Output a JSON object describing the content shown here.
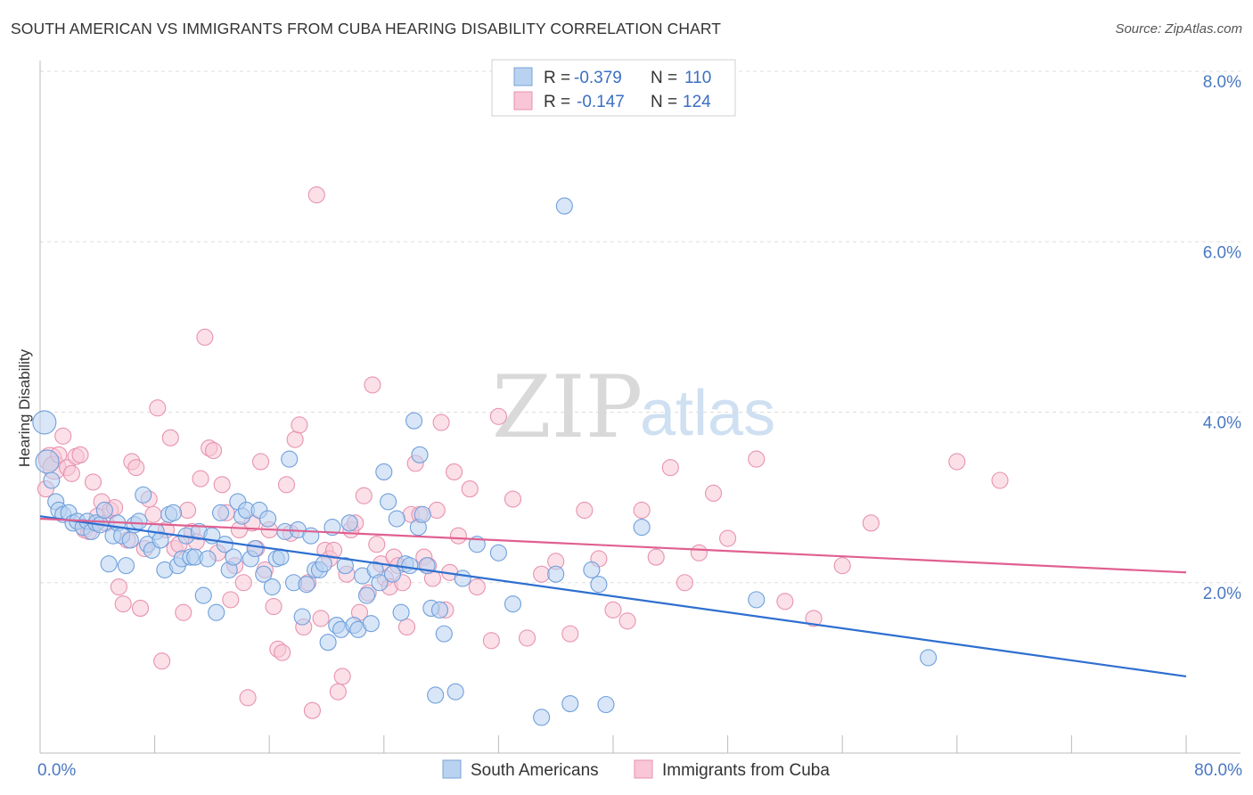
{
  "title": "SOUTH AMERICAN VS IMMIGRANTS FROM CUBA HEARING DISABILITY CORRELATION CHART",
  "source": "Source: ZipAtlas.com",
  "watermark": {
    "zip": "ZIP",
    "atlas": "atlas"
  },
  "legend": {
    "r_label": "R =",
    "n_label": "N =",
    "entries": [
      {
        "r": "-0.379",
        "n": "110",
        "fill": "#b8d2f0",
        "stroke": "#7aa3d8"
      },
      {
        "r": "-0.147",
        "n": "124",
        "fill": "#f8c6d6",
        "stroke": "#e892b0"
      }
    ]
  },
  "chart_data": {
    "type": "scatter",
    "title": "SOUTH AMERICAN VS IMMIGRANTS FROM CUBA HEARING DISABILITY CORRELATION CHART",
    "xlabel": "",
    "ylabel": "Hearing Disability",
    "xlim": [
      0,
      80
    ],
    "ylim": [
      0,
      8
    ],
    "x_tick_labels": [
      "0.0%",
      "80.0%"
    ],
    "y_ticks": [
      2,
      4,
      6,
      8
    ],
    "y_tick_labels": [
      "2.0%",
      "4.0%",
      "6.0%",
      "8.0%"
    ],
    "grid": "horizontal dashed",
    "legend_position": "top-center",
    "series": [
      {
        "name": "South Americans",
        "color": "#6f9fdc",
        "fill": "#b8d2f0",
        "line_color": "#2e6fd0",
        "r": -0.379,
        "n": 110,
        "trend": {
          "x": [
            0,
            80
          ],
          "y": [
            2.78,
            0.9
          ]
        },
        "points": [
          [
            0.3,
            3.88
          ],
          [
            0.5,
            3.42
          ],
          [
            0.8,
            3.2
          ],
          [
            1.1,
            2.95
          ],
          [
            1.3,
            2.85
          ],
          [
            1.6,
            2.8
          ],
          [
            2.0,
            2.82
          ],
          [
            2.3,
            2.7
          ],
          [
            2.6,
            2.72
          ],
          [
            3.0,
            2.65
          ],
          [
            3.3,
            2.72
          ],
          [
            3.6,
            2.6
          ],
          [
            3.9,
            2.7
          ],
          [
            4.2,
            2.68
          ],
          [
            4.5,
            2.85
          ],
          [
            4.8,
            2.22
          ],
          [
            5.1,
            2.55
          ],
          [
            5.4,
            2.7
          ],
          [
            5.7,
            2.55
          ],
          [
            6.0,
            2.2
          ],
          [
            6.3,
            2.5
          ],
          [
            6.6,
            2.68
          ],
          [
            6.9,
            2.72
          ],
          [
            7.2,
            3.03
          ],
          [
            7.5,
            2.45
          ],
          [
            7.8,
            2.38
          ],
          [
            8.1,
            2.6
          ],
          [
            8.4,
            2.5
          ],
          [
            8.7,
            2.15
          ],
          [
            9.0,
            2.8
          ],
          [
            9.3,
            2.82
          ],
          [
            9.6,
            2.2
          ],
          [
            9.9,
            2.28
          ],
          [
            10.2,
            2.55
          ],
          [
            10.5,
            2.3
          ],
          [
            10.8,
            2.3
          ],
          [
            11.1,
            2.6
          ],
          [
            11.4,
            1.85
          ],
          [
            11.7,
            2.28
          ],
          [
            12.0,
            2.55
          ],
          [
            12.3,
            1.65
          ],
          [
            12.6,
            2.82
          ],
          [
            12.9,
            2.45
          ],
          [
            13.2,
            2.15
          ],
          [
            13.5,
            2.3
          ],
          [
            13.8,
            2.95
          ],
          [
            14.1,
            2.78
          ],
          [
            14.4,
            2.85
          ],
          [
            14.7,
            2.28
          ],
          [
            15.0,
            2.4
          ],
          [
            15.3,
            2.85
          ],
          [
            15.6,
            2.1
          ],
          [
            15.9,
            2.75
          ],
          [
            16.2,
            1.95
          ],
          [
            16.5,
            2.28
          ],
          [
            16.8,
            2.3
          ],
          [
            17.1,
            2.6
          ],
          [
            17.4,
            3.45
          ],
          [
            17.7,
            2.0
          ],
          [
            18.0,
            2.62
          ],
          [
            18.3,
            1.6
          ],
          [
            18.6,
            1.98
          ],
          [
            18.9,
            2.55
          ],
          [
            19.2,
            2.15
          ],
          [
            19.5,
            2.15
          ],
          [
            19.8,
            2.22
          ],
          [
            20.1,
            1.3
          ],
          [
            20.4,
            2.65
          ],
          [
            20.7,
            1.5
          ],
          [
            21.0,
            1.45
          ],
          [
            21.3,
            2.2
          ],
          [
            21.6,
            2.7
          ],
          [
            21.9,
            1.5
          ],
          [
            22.2,
            1.45
          ],
          [
            22.5,
            2.08
          ],
          [
            22.8,
            1.85
          ],
          [
            23.1,
            1.52
          ],
          [
            23.4,
            2.15
          ],
          [
            23.7,
            2.0
          ],
          [
            24.0,
            3.3
          ],
          [
            24.3,
            2.95
          ],
          [
            24.6,
            2.1
          ],
          [
            24.9,
            2.75
          ],
          [
            25.2,
            1.65
          ],
          [
            25.5,
            2.22
          ],
          [
            25.8,
            2.2
          ],
          [
            26.1,
            3.9
          ],
          [
            26.4,
            2.65
          ],
          [
            26.7,
            2.8
          ],
          [
            27.0,
            2.2
          ],
          [
            27.3,
            1.7
          ],
          [
            27.6,
            0.68
          ],
          [
            27.9,
            1.68
          ],
          [
            28.2,
            1.4
          ],
          [
            29.0,
            0.72
          ],
          [
            29.5,
            2.05
          ],
          [
            30.5,
            2.45
          ],
          [
            32.0,
            2.35
          ],
          [
            33.0,
            1.75
          ],
          [
            35.0,
            0.42
          ],
          [
            36.0,
            2.1
          ],
          [
            36.6,
            6.42
          ],
          [
            37.0,
            0.58
          ],
          [
            39.0,
            1.98
          ],
          [
            39.5,
            0.57
          ],
          [
            42.0,
            2.65
          ],
          [
            38.5,
            2.15
          ],
          [
            50.0,
            1.8
          ],
          [
            62.0,
            1.12
          ],
          [
            26.5,
            3.5
          ]
        ]
      },
      {
        "name": "Immigrants from Cuba",
        "color": "#e892b0",
        "fill": "#f8c6d6",
        "line_color": "#e06090",
        "r": -0.147,
        "n": 124,
        "trend": {
          "x": [
            0,
            80
          ],
          "y": [
            2.75,
            2.12
          ]
        },
        "points": [
          [
            0.4,
            3.1
          ],
          [
            0.7,
            3.45
          ],
          [
            1.0,
            3.35
          ],
          [
            1.3,
            3.5
          ],
          [
            1.6,
            3.72
          ],
          [
            1.9,
            3.35
          ],
          [
            2.2,
            3.28
          ],
          [
            2.5,
            3.48
          ],
          [
            2.8,
            3.5
          ],
          [
            3.1,
            2.62
          ],
          [
            3.4,
            2.6
          ],
          [
            3.7,
            3.18
          ],
          [
            4.0,
            2.78
          ],
          [
            4.3,
            2.95
          ],
          [
            4.6,
            2.7
          ],
          [
            4.9,
            2.85
          ],
          [
            5.2,
            2.88
          ],
          [
            5.5,
            1.95
          ],
          [
            5.8,
            1.75
          ],
          [
            6.1,
            2.5
          ],
          [
            6.4,
            3.42
          ],
          [
            6.7,
            3.35
          ],
          [
            7.0,
            1.7
          ],
          [
            7.3,
            2.4
          ],
          [
            7.6,
            2.98
          ],
          [
            7.9,
            2.8
          ],
          [
            8.2,
            4.05
          ],
          [
            8.5,
            1.08
          ],
          [
            8.8,
            2.62
          ],
          [
            9.1,
            3.7
          ],
          [
            9.4,
            2.4
          ],
          [
            9.7,
            2.45
          ],
          [
            10.0,
            1.65
          ],
          [
            10.3,
            2.85
          ],
          [
            10.6,
            2.6
          ],
          [
            10.9,
            2.48
          ],
          [
            11.2,
            3.22
          ],
          [
            11.5,
            4.88
          ],
          [
            11.8,
            3.58
          ],
          [
            12.1,
            3.55
          ],
          [
            12.4,
            2.35
          ],
          [
            12.7,
            3.15
          ],
          [
            13.0,
            2.82
          ],
          [
            13.3,
            1.8
          ],
          [
            13.6,
            2.2
          ],
          [
            13.9,
            2.62
          ],
          [
            14.2,
            2.0
          ],
          [
            14.5,
            0.65
          ],
          [
            14.8,
            2.7
          ],
          [
            15.1,
            2.4
          ],
          [
            15.4,
            3.42
          ],
          [
            15.7,
            2.15
          ],
          [
            16.0,
            2.62
          ],
          [
            16.3,
            1.72
          ],
          [
            16.6,
            1.22
          ],
          [
            16.9,
            1.18
          ],
          [
            17.2,
            3.15
          ],
          [
            17.5,
            2.58
          ],
          [
            17.8,
            3.68
          ],
          [
            18.1,
            3.85
          ],
          [
            18.4,
            1.48
          ],
          [
            18.7,
            2.0
          ],
          [
            19.0,
            0.5
          ],
          [
            19.3,
            6.55
          ],
          [
            19.6,
            1.58
          ],
          [
            19.9,
            2.38
          ],
          [
            20.2,
            2.28
          ],
          [
            20.5,
            2.38
          ],
          [
            20.8,
            0.72
          ],
          [
            21.1,
            0.9
          ],
          [
            21.4,
            2.1
          ],
          [
            21.7,
            2.62
          ],
          [
            22.0,
            2.7
          ],
          [
            22.3,
            1.65
          ],
          [
            22.6,
            3.02
          ],
          [
            22.9,
            1.88
          ],
          [
            23.2,
            4.32
          ],
          [
            23.5,
            2.45
          ],
          [
            23.8,
            2.22
          ],
          [
            24.1,
            2.05
          ],
          [
            24.4,
            1.95
          ],
          [
            24.7,
            2.3
          ],
          [
            25.0,
            2.2
          ],
          [
            25.3,
            2.0
          ],
          [
            25.6,
            1.48
          ],
          [
            25.9,
            2.8
          ],
          [
            26.2,
            3.4
          ],
          [
            26.5,
            2.8
          ],
          [
            26.8,
            2.3
          ],
          [
            27.1,
            2.2
          ],
          [
            27.4,
            2.05
          ],
          [
            27.7,
            2.85
          ],
          [
            28.0,
            3.88
          ],
          [
            28.3,
            1.68
          ],
          [
            28.6,
            2.12
          ],
          [
            28.9,
            3.3
          ],
          [
            29.2,
            2.55
          ],
          [
            30.0,
            3.1
          ],
          [
            30.5,
            1.95
          ],
          [
            31.5,
            1.32
          ],
          [
            32.0,
            3.95
          ],
          [
            33.0,
            2.98
          ],
          [
            34.0,
            1.35
          ],
          [
            35.0,
            2.1
          ],
          [
            36.0,
            2.25
          ],
          [
            37.0,
            1.4
          ],
          [
            38.0,
            2.85
          ],
          [
            39.0,
            2.28
          ],
          [
            40.0,
            1.68
          ],
          [
            41.0,
            1.55
          ],
          [
            42.0,
            2.85
          ],
          [
            43.0,
            2.3
          ],
          [
            44.0,
            3.35
          ],
          [
            45.0,
            2.0
          ],
          [
            46.0,
            2.35
          ],
          [
            47.0,
            3.05
          ],
          [
            48.0,
            2.52
          ],
          [
            50.0,
            3.45
          ],
          [
            52.0,
            1.78
          ],
          [
            54.0,
            1.58
          ],
          [
            56.0,
            2.2
          ],
          [
            58.0,
            2.7
          ],
          [
            64.0,
            3.42
          ],
          [
            67.0,
            3.2
          ]
        ]
      }
    ]
  },
  "bottom_legend": [
    "South Americans",
    "Immigrants from Cuba"
  ]
}
